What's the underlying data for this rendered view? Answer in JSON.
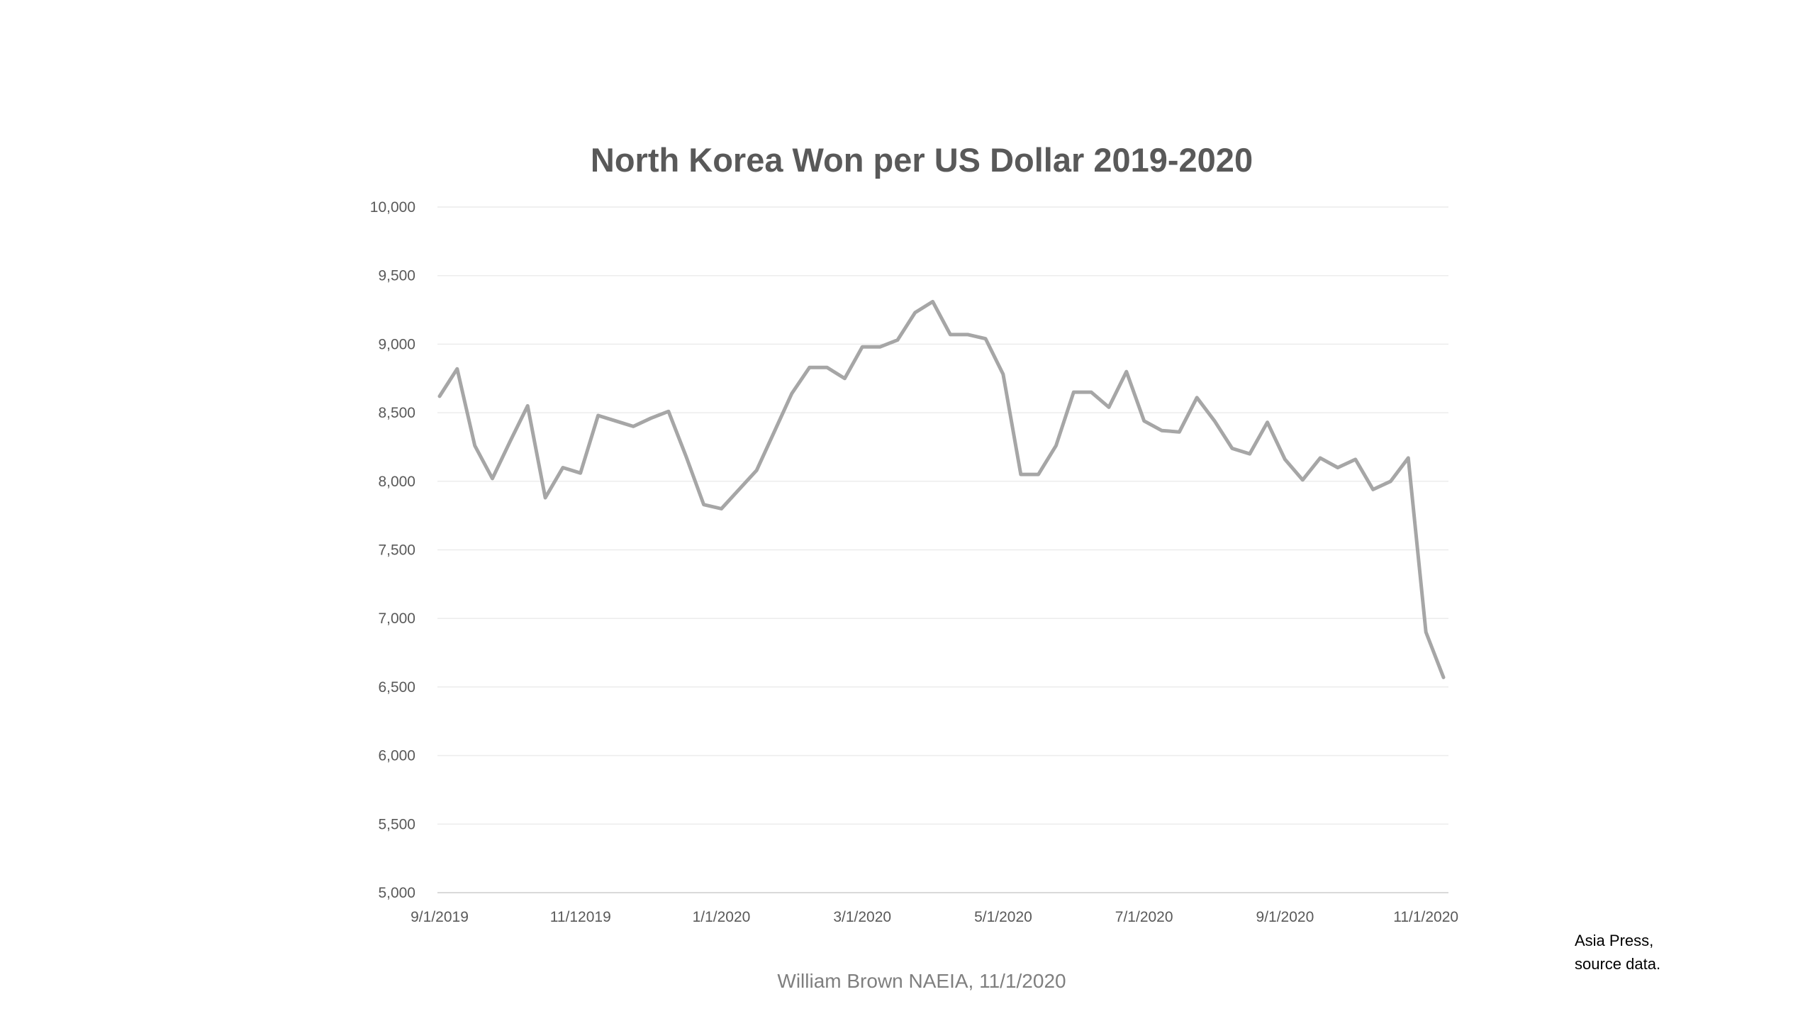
{
  "chart_data": {
    "type": "line",
    "title": "North Korea Won per US Dollar 2019-2020",
    "xlabel": "",
    "ylabel": "",
    "ylim": [
      5000,
      10000
    ],
    "yticks": [
      5000,
      5500,
      6000,
      6500,
      7000,
      7500,
      8000,
      8500,
      9000,
      9500,
      10000
    ],
    "ytick_labels": [
      "5,000",
      "5,500",
      "6,000",
      "6,500",
      "7,000",
      "7,500",
      "8,000",
      "8,500",
      "9,000",
      "9,500",
      "10,000"
    ],
    "xtick_labels": [
      "9/1/2019",
      "11/12019",
      "1/1/2020",
      "3/1/2020",
      "5/1/2020",
      "7/1/2020",
      "9/1/2020",
      "11/1/2020"
    ],
    "xtick_index": [
      0,
      8,
      16,
      24,
      32,
      40,
      48,
      56
    ],
    "grid": true,
    "legend": "none",
    "series": [
      {
        "name": "Won per US Dollar",
        "color": "#a6a6a6",
        "values": [
          8620,
          8820,
          8260,
          8020,
          8290,
          8550,
          7880,
          8100,
          8060,
          8480,
          8440,
          8400,
          8460,
          8510,
          8180,
          7830,
          7800,
          7940,
          8080,
          8360,
          8640,
          8830,
          8830,
          8750,
          8980,
          8980,
          9030,
          9230,
          9310,
          9070,
          9070,
          9040,
          8780,
          8050,
          8050,
          8260,
          8650,
          8650,
          8540,
          8800,
          8440,
          8370,
          8360,
          8610,
          8440,
          8240,
          8200,
          8430,
          8160,
          8010,
          8170,
          8100,
          8160,
          7940,
          8000,
          8170,
          6900,
          6570
        ]
      }
    ]
  },
  "footer": {
    "credit": "William Brown NAEIA, 11/1/2020",
    "source_line1": "Asia Press,",
    "source_line2": "source data."
  },
  "colors": {
    "line": "#a6a6a6",
    "title": "#595959",
    "grid": "#ececec"
  }
}
